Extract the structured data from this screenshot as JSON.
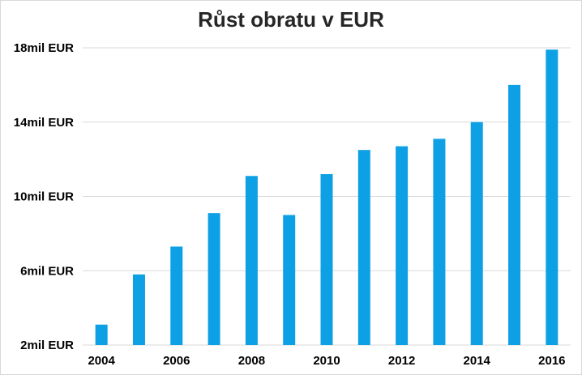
{
  "chart_data": {
    "type": "bar",
    "title": "Růst obratu v EUR",
    "xlabel": "",
    "ylabel": "",
    "categories": [
      "2004",
      "2005",
      "2006",
      "2007",
      "2008",
      "2009",
      "2010",
      "2011",
      "2012",
      "2013",
      "2014",
      "2015",
      "2016"
    ],
    "values": [
      3.1,
      5.8,
      7.3,
      9.1,
      11.1,
      9.0,
      11.2,
      12.5,
      12.7,
      13.1,
      14.0,
      16.0,
      17.9
    ],
    "ylim": [
      2,
      18
    ],
    "y_ticks": [
      2,
      6,
      10,
      14,
      18
    ],
    "y_tick_labels": [
      "2mil EUR",
      "6mil EUR",
      "10mil EUR",
      "14mil EUR",
      "18mil EUR"
    ],
    "x_tick_labels": [
      "2004",
      "",
      "2006",
      "",
      "2008",
      "",
      "2010",
      "",
      "2012",
      "",
      "2014",
      "",
      "2016"
    ],
    "grid": true,
    "legend": "none",
    "colors": {
      "bar": "#0ea0e4",
      "grid": "#d9d9d9",
      "title": "#262626"
    }
  }
}
